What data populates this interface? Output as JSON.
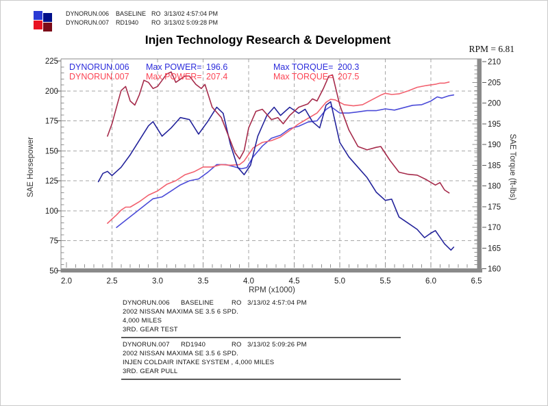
{
  "header": {
    "rows": [
      {
        "file": "DYNORUN.006",
        "label": "BASELINE",
        "stamp": "RO  3/13/02 4:57:04 PM"
      },
      {
        "file": "DYNORUN.007",
        "label": "RD1940",
        "stamp": "RO  3/13/02 5:09:28 PM"
      }
    ],
    "swatch_colors": {
      "power_006": "#2a3ad4",
      "torque_006": "#000f8a",
      "power_007": "#e81222",
      "torque_007": "#7c0a18"
    }
  },
  "title": "Injen Technology Research & Development",
  "rpm_readout": "RPM = 6.81",
  "chart_data": {
    "type": "line",
    "title": "Injen Technology Research & Development",
    "xlabel": "RPM (x1000)",
    "ylabel_left": "SAE Horsepower",
    "ylabel_right": "SAE Torque (ft-lbs)",
    "xlim": [
      2.0,
      6.5
    ],
    "ylim_left": [
      50,
      225
    ],
    "ylim_right": [
      160,
      210
    ],
    "xticks": [
      2.0,
      2.5,
      3.0,
      3.5,
      4.0,
      4.5,
      5.0,
      5.5,
      6.0,
      6.5
    ],
    "yticks_left": [
      225,
      200,
      175,
      150,
      125,
      100,
      75,
      50
    ],
    "yticks_right": [
      210,
      205,
      200,
      195,
      190,
      185,
      180,
      175,
      170,
      165,
      160
    ],
    "grid": "dashed",
    "legend": [
      {
        "run": "DYNORUN.006",
        "max_power_label": "Max POWER=",
        "max_power": "196.6",
        "max_torque_label": "Max TORQUE=",
        "max_torque": "200.3",
        "color": "#2b2bdb"
      },
      {
        "run": "DYNORUN.007",
        "max_power_label": "Max POWER=",
        "max_power": "207.4",
        "max_torque_label": "Max TORQUE=",
        "max_torque": "207.5",
        "color": "#fb4353"
      }
    ],
    "series": [
      {
        "name": "DYNORUN.006 Power",
        "unit": "HP",
        "axis": "left",
        "color": "#4a4ad8",
        "points": [
          [
            2.55,
            86
          ],
          [
            2.65,
            92
          ],
          [
            2.75,
            98
          ],
          [
            2.85,
            104
          ],
          [
            2.95,
            110
          ],
          [
            3.05,
            111.5
          ],
          [
            3.15,
            116.5
          ],
          [
            3.25,
            121.5
          ],
          [
            3.35,
            125
          ],
          [
            3.45,
            126.5
          ],
          [
            3.55,
            132
          ],
          [
            3.65,
            138.5
          ],
          [
            3.75,
            138.5
          ],
          [
            3.85,
            136.5
          ],
          [
            3.92,
            135
          ],
          [
            3.98,
            136
          ],
          [
            4.05,
            145
          ],
          [
            4.15,
            154
          ],
          [
            4.25,
            160.5
          ],
          [
            4.35,
            163
          ],
          [
            4.45,
            168.5
          ],
          [
            4.55,
            170.5
          ],
          [
            4.65,
            174
          ],
          [
            4.75,
            175
          ],
          [
            4.85,
            184.5
          ],
          [
            4.9,
            187
          ],
          [
            5.0,
            181.5
          ],
          [
            5.1,
            181.5
          ],
          [
            5.2,
            182.5
          ],
          [
            5.3,
            183.5
          ],
          [
            5.4,
            183.5
          ],
          [
            5.5,
            185
          ],
          [
            5.6,
            184
          ],
          [
            5.7,
            186
          ],
          [
            5.8,
            188
          ],
          [
            5.9,
            188.5
          ],
          [
            6.0,
            191.5
          ],
          [
            6.07,
            195
          ],
          [
            6.12,
            194
          ],
          [
            6.2,
            196
          ],
          [
            6.25,
            196.6
          ]
        ]
      },
      {
        "name": "DYNORUN.007 Power",
        "unit": "HP",
        "axis": "left",
        "color": "#f2606e",
        "points": [
          [
            2.45,
            89.5
          ],
          [
            2.5,
            93
          ],
          [
            2.55,
            96.5
          ],
          [
            2.6,
            100.5
          ],
          [
            2.65,
            103
          ],
          [
            2.7,
            103
          ],
          [
            2.8,
            107.5
          ],
          [
            2.9,
            113
          ],
          [
            3.0,
            116.5
          ],
          [
            3.1,
            122
          ],
          [
            3.2,
            125
          ],
          [
            3.3,
            130
          ],
          [
            3.4,
            132.5
          ],
          [
            3.5,
            136.5
          ],
          [
            3.6,
            136.5
          ],
          [
            3.7,
            138.5
          ],
          [
            3.8,
            138
          ],
          [
            3.9,
            138.5
          ],
          [
            3.95,
            141.5
          ],
          [
            4.05,
            152.5
          ],
          [
            4.15,
            157
          ],
          [
            4.25,
            158.5
          ],
          [
            4.35,
            161.5
          ],
          [
            4.45,
            167
          ],
          [
            4.55,
            172.5
          ],
          [
            4.65,
            177
          ],
          [
            4.75,
            181.5
          ],
          [
            4.85,
            190.5
          ],
          [
            4.9,
            193
          ],
          [
            4.95,
            192.5
          ],
          [
            5.05,
            188.5
          ],
          [
            5.15,
            187.5
          ],
          [
            5.25,
            188.5
          ],
          [
            5.35,
            192.5
          ],
          [
            5.45,
            196.5
          ],
          [
            5.5,
            198
          ],
          [
            5.57,
            197
          ],
          [
            5.65,
            197.5
          ],
          [
            5.75,
            200
          ],
          [
            5.85,
            203
          ],
          [
            5.95,
            204.5
          ],
          [
            6.05,
            205.5
          ],
          [
            6.1,
            206.5
          ],
          [
            6.15,
            206.5
          ],
          [
            6.2,
            207.4
          ]
        ]
      },
      {
        "name": "DYNORUN.006 Torque",
        "unit": "ft-lbs",
        "axis": "right",
        "color": "#22229a",
        "points": [
          [
            2.35,
            181
          ],
          [
            2.4,
            183
          ],
          [
            2.45,
            183.5
          ],
          [
            2.5,
            182.5
          ],
          [
            2.6,
            184.5
          ],
          [
            2.7,
            187.5
          ],
          [
            2.8,
            191
          ],
          [
            2.9,
            194.5
          ],
          [
            2.95,
            195.5
          ],
          [
            3.05,
            192
          ],
          [
            3.15,
            194
          ],
          [
            3.25,
            196.5
          ],
          [
            3.35,
            196
          ],
          [
            3.45,
            192.5
          ],
          [
            3.55,
            195.5
          ],
          [
            3.65,
            199
          ],
          [
            3.72,
            197.5
          ],
          [
            3.8,
            190
          ],
          [
            3.88,
            184.5
          ],
          [
            3.95,
            182.7
          ],
          [
            4.02,
            185
          ],
          [
            4.1,
            192
          ],
          [
            4.2,
            197
          ],
          [
            4.28,
            199
          ],
          [
            4.35,
            197
          ],
          [
            4.45,
            199
          ],
          [
            4.55,
            197.5
          ],
          [
            4.62,
            198.5
          ],
          [
            4.7,
            195.5
          ],
          [
            4.78,
            194
          ],
          [
            4.85,
            199.5
          ],
          [
            4.9,
            200.3
          ],
          [
            5.0,
            190.5
          ],
          [
            5.1,
            187
          ],
          [
            5.2,
            184.5
          ],
          [
            5.3,
            182
          ],
          [
            5.4,
            178.5
          ],
          [
            5.5,
            176.5
          ],
          [
            5.57,
            176.8
          ],
          [
            5.65,
            172.5
          ],
          [
            5.75,
            171
          ],
          [
            5.85,
            169.5
          ],
          [
            5.93,
            167.5
          ],
          [
            6.0,
            168.6
          ],
          [
            6.05,
            169.2
          ],
          [
            6.15,
            166
          ],
          [
            6.22,
            164.5
          ],
          [
            6.25,
            165.2
          ]
        ]
      },
      {
        "name": "DYNORUN.007 Torque",
        "unit": "ft-lbs",
        "axis": "right",
        "color": "#a52a4a",
        "points": [
          [
            2.45,
            192
          ],
          [
            2.5,
            195
          ],
          [
            2.55,
            199
          ],
          [
            2.6,
            203
          ],
          [
            2.65,
            204
          ],
          [
            2.7,
            200.5
          ],
          [
            2.75,
            199.5
          ],
          [
            2.8,
            202
          ],
          [
            2.85,
            205.5
          ],
          [
            2.9,
            205
          ],
          [
            2.95,
            203.5
          ],
          [
            3.0,
            204
          ],
          [
            3.1,
            207
          ],
          [
            3.15,
            207.5
          ],
          [
            3.2,
            205
          ],
          [
            3.3,
            206.5
          ],
          [
            3.35,
            206.5
          ],
          [
            3.42,
            204.5
          ],
          [
            3.48,
            203.5
          ],
          [
            3.52,
            204.5
          ],
          [
            3.6,
            199
          ],
          [
            3.7,
            196.5
          ],
          [
            3.78,
            192
          ],
          [
            3.85,
            188
          ],
          [
            3.9,
            186.5
          ],
          [
            3.95,
            188.5
          ],
          [
            4.0,
            194
          ],
          [
            4.08,
            198
          ],
          [
            4.15,
            198.5
          ],
          [
            4.25,
            196
          ],
          [
            4.32,
            196.5
          ],
          [
            4.38,
            195
          ],
          [
            4.45,
            197
          ],
          [
            4.55,
            199
          ],
          [
            4.65,
            199.8
          ],
          [
            4.7,
            201
          ],
          [
            4.75,
            200.5
          ],
          [
            4.82,
            203.5
          ],
          [
            4.88,
            206.5
          ],
          [
            4.92,
            206.8
          ],
          [
            5.0,
            199.5
          ],
          [
            5.1,
            193.5
          ],
          [
            5.2,
            189.5
          ],
          [
            5.3,
            188.7
          ],
          [
            5.4,
            189.3
          ],
          [
            5.45,
            189.5
          ],
          [
            5.55,
            186.2
          ],
          [
            5.65,
            183.3
          ],
          [
            5.75,
            182.8
          ],
          [
            5.85,
            182.6
          ],
          [
            5.95,
            181.5
          ],
          [
            6.05,
            180.2
          ],
          [
            6.1,
            180.8
          ],
          [
            6.15,
            179
          ],
          [
            6.2,
            178.3
          ]
        ]
      }
    ]
  },
  "footer": {
    "blocks": [
      {
        "file": "DYNORUN.006",
        "label": "BASELINE",
        "stamp": "RO   3/13/02 4:57:04 PM",
        "lines": [
          "2002 NISSAN MAXIMA SE 3.5 6 SPD.",
          "4,000 MILES",
          "3RD. GEAR TEST"
        ]
      },
      {
        "file": "DYNORUN.007",
        "label": "RD1940",
        "stamp": "RO   3/13/02 5:09:26 PM",
        "lines": [
          "2002 NISSAN MAXIMA SE 3.5 6 SPD.",
          "INJEN COLDAIR INTAKE SYSTEM , 4,000 MILES",
          "3RD. GEAR PULL"
        ]
      }
    ]
  }
}
